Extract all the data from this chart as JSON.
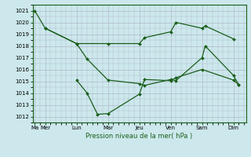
{
  "xlabel": "Pression niveau de la mer( hPa )",
  "bg_color": "#cce8ec",
  "grid_color": "#b0b8cc",
  "line_color": "#1a5e1a",
  "ylim": [
    1011.5,
    1021.5
  ],
  "yticks": [
    1012,
    1013,
    1014,
    1015,
    1016,
    1017,
    1018,
    1019,
    1020,
    1021
  ],
  "xtick_labels": [
    "Ma",
    "Mer",
    "Lun",
    "Mar",
    "Jeu",
    "Ven",
    "Sam",
    "Dim"
  ],
  "xtick_positions": [
    0,
    0.5,
    2,
    3.5,
    5,
    6.5,
    8,
    9.5
  ],
  "xmin": -0.1,
  "xmax": 10.1,
  "line1_x": [
    0,
    0.5,
    2,
    3.5,
    5,
    5.25,
    6.5,
    6.75,
    8,
    8.15,
    9.5
  ],
  "line1_y": [
    1021.0,
    1019.5,
    1018.2,
    1018.2,
    1018.2,
    1018.7,
    1019.2,
    1020.0,
    1019.5,
    1019.7,
    1018.6
  ],
  "line2_x": [
    0.5,
    2,
    2.5,
    3.5,
    5,
    5.25,
    6.5,
    6.75,
    8,
    8.15,
    9.5,
    9.75
  ],
  "line2_y": [
    1019.5,
    1018.2,
    1016.9,
    1015.1,
    1014.8,
    1014.65,
    1015.15,
    1015.05,
    1017.0,
    1018.0,
    1015.5,
    1014.7
  ],
  "line3_x": [
    2,
    2.5,
    3,
    3.5,
    5,
    5.25,
    6.5,
    6.75,
    8,
    9.5,
    9.75
  ],
  "line3_y": [
    1015.1,
    1014.0,
    1012.2,
    1012.25,
    1013.9,
    1015.15,
    1015.05,
    1015.3,
    1016.0,
    1015.1,
    1014.7
  ]
}
